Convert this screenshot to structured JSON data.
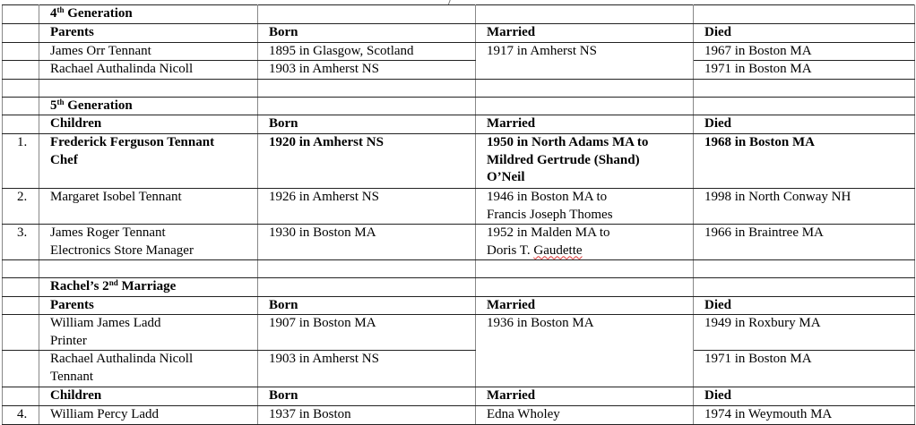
{
  "sections": {
    "gen4": {
      "title": "4",
      "sup": "th",
      "suffix": " Generation"
    },
    "gen5": {
      "title": "5",
      "sup": "th",
      "suffix": " Generation"
    },
    "second": {
      "title": "Rachel’s 2",
      "sup": "nd",
      "suffix": " Marriage"
    }
  },
  "headers": {
    "parents": "Parents",
    "children": "Children",
    "born": "Born",
    "married": "Married",
    "died": "Died"
  },
  "gen4_parents": [
    {
      "name": "James Orr Tennant",
      "born": "1895 in Glasgow, Scotland",
      "died": "1967 in Boston MA"
    },
    {
      "name": "Rachael Authalinda Nicoll",
      "born": "1903 in Amherst NS",
      "died": "1971 in Boston MA"
    }
  ],
  "gen4_married": "1917 in Amherst NS",
  "gen5_children": [
    {
      "num": "1.",
      "name": "Frederick Ferguson Tennant",
      "occupation": "Chef",
      "born": "1920 in Amherst NS",
      "married": [
        "1950 in North Adams MA to",
        "Mildred Gertrude (Shand)",
        "O’Neil"
      ],
      "died": "1968 in Boston MA"
    },
    {
      "num": "2.",
      "name": "Margaret Isobel Tennant",
      "occupation": "",
      "born": "1926 in Amherst NS",
      "married": [
        "1946 in Boston MA to",
        "Francis Joseph Thomes"
      ],
      "died": "1998 in North Conway NH"
    },
    {
      "num": "3.",
      "name": "James Roger Tennant",
      "occupation": "Electronics Store Manager",
      "born": "1930 in Boston MA",
      "married": [
        "1952 in Malden MA to",
        "Doris T. ",
        "Gaudette"
      ],
      "died": "1966 in Braintree MA"
    }
  ],
  "second_parents": [
    {
      "name": "William James Ladd",
      "occupation": "Printer",
      "born": "1907 in Boston MA",
      "died": "1949 in Roxbury MA"
    },
    {
      "name": "Rachael Authalinda Nicoll",
      "occupation": "Tennant",
      "born": "1903 in Amherst NS",
      "died": "1971 in Boston MA"
    }
  ],
  "second_married": "1936 in Boston MA",
  "second_children": [
    {
      "num": "4.",
      "name": "William Percy Ladd",
      "born": "1937 in Boston",
      "married": "Edna Wholey",
      "died": "1974 in Weymouth MA"
    }
  ]
}
